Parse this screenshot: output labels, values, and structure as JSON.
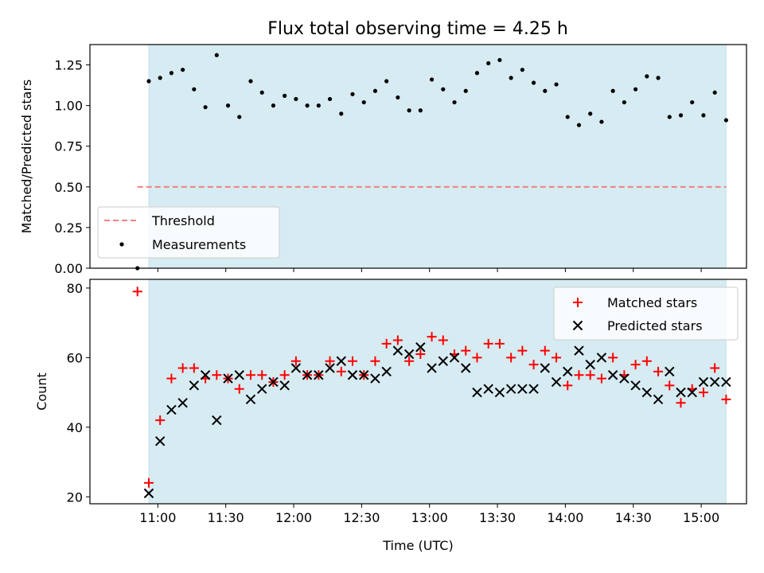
{
  "title": "Flux total observing time = 4.25 h",
  "colors": {
    "span_fill": "#add8e6",
    "threshold": "#f08080",
    "measurements": "#000000",
    "matched": "#ff0000",
    "predicted": "#000000"
  },
  "chart_data": [
    {
      "type": "scatter",
      "ylabel": "Matched/Predicted stars",
      "ylim": [
        0,
        1.375
      ],
      "yticks": [
        "0.00",
        "0.25",
        "0.50",
        "0.75",
        "1.00",
        "1.25"
      ],
      "grid": false,
      "legend_placement": "lower-left",
      "shaded_span": [
        "10:56",
        "15:11"
      ],
      "threshold": {
        "name": "Threshold",
        "value": 0.5,
        "x_range": [
          "10:51",
          "15:11"
        ],
        "style": "dashed"
      },
      "series": [
        {
          "name": "Measurements",
          "x": [
            "10:51",
            "10:56",
            "11:01",
            "11:06",
            "11:11",
            "11:16",
            "11:21",
            "11:26",
            "11:31",
            "11:36",
            "11:41",
            "11:46",
            "11:51",
            "11:56",
            "12:01",
            "12:06",
            "12:11",
            "12:16",
            "12:21",
            "12:26",
            "12:31",
            "12:36",
            "12:41",
            "12:46",
            "12:51",
            "12:56",
            "13:01",
            "13:06",
            "13:11",
            "13:16",
            "13:21",
            "13:26",
            "13:31",
            "13:36",
            "13:41",
            "13:46",
            "13:51",
            "13:56",
            "14:01",
            "14:06",
            "14:11",
            "14:16",
            "14:21",
            "14:26",
            "14:31",
            "14:36",
            "14:41",
            "14:46",
            "14:51",
            "14:56",
            "15:01",
            "15:06",
            "15:11"
          ],
          "values": [
            0.0,
            1.15,
            1.17,
            1.2,
            1.22,
            1.1,
            0.99,
            1.31,
            1.0,
            0.93,
            1.15,
            1.08,
            1.0,
            1.06,
            1.04,
            1.0,
            1.0,
            1.04,
            0.95,
            1.07,
            1.02,
            1.09,
            1.15,
            1.05,
            0.97,
            0.97,
            1.16,
            1.1,
            1.02,
            1.09,
            1.2,
            1.26,
            1.28,
            1.17,
            1.22,
            1.14,
            1.09,
            1.13,
            0.93,
            0.88,
            0.95,
            0.9,
            1.09,
            1.02,
            1.1,
            1.18,
            1.17,
            0.93,
            0.94,
            1.02,
            0.94,
            1.08,
            0.91
          ]
        }
      ]
    },
    {
      "type": "scatter",
      "xlabel": "Time (UTC)",
      "ylabel": "Count",
      "ylim": [
        18,
        82.5
      ],
      "yticks": [
        "20",
        "40",
        "60",
        "80"
      ],
      "xlim": [
        "10:30",
        "15:20"
      ],
      "xticks": [
        "11:00",
        "11:30",
        "12:00",
        "12:30",
        "13:00",
        "13:30",
        "14:00",
        "14:30",
        "15:00"
      ],
      "grid": false,
      "legend_placement": "top-right",
      "shaded_span": [
        "10:56",
        "15:11"
      ],
      "series": [
        {
          "name": "Matched stars",
          "marker": "+",
          "x": [
            "10:51",
            "10:56",
            "11:01",
            "11:06",
            "11:11",
            "11:16",
            "11:21",
            "11:26",
            "11:31",
            "11:36",
            "11:41",
            "11:46",
            "11:51",
            "11:56",
            "12:01",
            "12:06",
            "12:11",
            "12:16",
            "12:21",
            "12:26",
            "12:31",
            "12:36",
            "12:41",
            "12:46",
            "12:51",
            "12:56",
            "13:01",
            "13:06",
            "13:11",
            "13:16",
            "13:21",
            "13:26",
            "13:31",
            "13:36",
            "13:41",
            "13:46",
            "13:51",
            "13:56",
            "14:01",
            "14:06",
            "14:11",
            "14:16",
            "14:21",
            "14:26",
            "14:31",
            "14:36",
            "14:41",
            "14:46",
            "14:51",
            "14:56",
            "15:01",
            "15:06",
            "15:11"
          ],
          "values": [
            79,
            24,
            42,
            54,
            57,
            57,
            54,
            55,
            54,
            51,
            55,
            55,
            53,
            55,
            59,
            55,
            55,
            59,
            56,
            59,
            55,
            59,
            64,
            65,
            59,
            61,
            66,
            65,
            61,
            62,
            60,
            64,
            64,
            60,
            62,
            58,
            62,
            60,
            52,
            55,
            55,
            54,
            60,
            55,
            58,
            59,
            56,
            52,
            47,
            51,
            50,
            57,
            48
          ]
        },
        {
          "name": "Predicted stars",
          "marker": "x",
          "x": [
            "10:56",
            "11:01",
            "11:06",
            "11:11",
            "11:16",
            "11:21",
            "11:26",
            "11:31",
            "11:36",
            "11:41",
            "11:46",
            "11:51",
            "11:56",
            "12:01",
            "12:06",
            "12:11",
            "12:16",
            "12:21",
            "12:26",
            "12:31",
            "12:36",
            "12:41",
            "12:46",
            "12:51",
            "12:56",
            "13:01",
            "13:06",
            "13:11",
            "13:16",
            "13:21",
            "13:26",
            "13:31",
            "13:36",
            "13:41",
            "13:46",
            "13:51",
            "13:56",
            "14:01",
            "14:06",
            "14:11",
            "14:16",
            "14:21",
            "14:26",
            "14:31",
            "14:36",
            "14:41",
            "14:46",
            "14:51",
            "14:56",
            "15:01",
            "15:06",
            "15:11"
          ],
          "values": [
            21,
            36,
            45,
            47,
            52,
            55,
            42,
            54,
            55,
            48,
            51,
            53,
            52,
            57,
            55,
            55,
            57,
            59,
            55,
            55,
            54,
            56,
            62,
            61,
            63,
            57,
            59,
            60,
            57,
            50,
            51,
            50,
            51,
            51,
            51,
            57,
            53,
            56,
            62,
            58,
            60,
            55,
            54,
            52,
            50,
            48,
            56,
            50,
            50,
            53,
            53,
            53
          ]
        }
      ]
    }
  ]
}
